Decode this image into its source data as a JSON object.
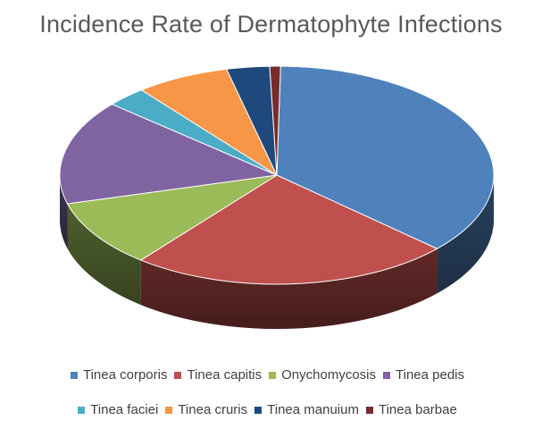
{
  "chart_data": {
    "type": "pie",
    "title": "Incidence Rate of Dermatophyte Infections",
    "legend_position": "bottom",
    "slices": [
      {
        "label": "Tinea corporis",
        "value": 36.5,
        "color": "#4F81BD"
      },
      {
        "label": "Tinea capitis",
        "value": 24.0,
        "color": "#C0504D"
      },
      {
        "label": "Onychomycosis",
        "value": 10.0,
        "color": "#9BBB59"
      },
      {
        "label": "Tinea pedis",
        "value": 15.5,
        "color": "#8064A2"
      },
      {
        "label": "Tinea faciei",
        "value": 3.0,
        "color": "#4BACC6"
      },
      {
        "label": "Tinea cruris",
        "value": 7.0,
        "color": "#F79646"
      },
      {
        "label": "Tinea manuium",
        "value": 3.2,
        "color": "#1F497D"
      },
      {
        "label": "Tinea barbae",
        "value": 0.8,
        "color": "#772C2A"
      }
    ]
  }
}
